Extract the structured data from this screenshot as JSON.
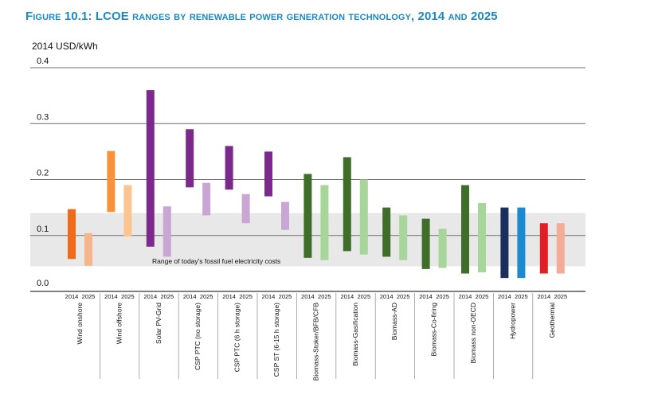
{
  "title": "Figure 10.1: LCOE ranges by renewable power generation technology, 2014 and 2025",
  "chart_data": {
    "type": "bar",
    "subtype": "floating-range",
    "ylabel": "2014 USD/kWh",
    "ylim": [
      0,
      0.4
    ],
    "yticks": [
      "0.0",
      "0.1",
      "0.2",
      "0.3",
      "0.4"
    ],
    "grid": true,
    "fossil_band": {
      "label": "Range of today's fossil fuel electricity costs",
      "low": 0.045,
      "high": 0.14,
      "color": "#e8e8e8"
    },
    "years": [
      "2014",
      "2025"
    ],
    "categories": [
      {
        "name": "Wind onshore",
        "ranges": [
          {
            "year": "2014",
            "low": 0.058,
            "high": 0.147,
            "color": "#f06a1a"
          },
          {
            "year": "2025",
            "low": 0.046,
            "high": 0.104,
            "color": "#f7b58a"
          }
        ]
      },
      {
        "name": "Wind offshore",
        "ranges": [
          {
            "year": "2014",
            "low": 0.142,
            "high": 0.251,
            "color": "#f7923a"
          },
          {
            "year": "2025",
            "low": 0.098,
            "high": 0.19,
            "color": "#fbc491"
          }
        ]
      },
      {
        "name": "Solar PV-Grid",
        "ranges": [
          {
            "year": "2014",
            "low": 0.08,
            "high": 0.36,
            "color": "#7b2a8b"
          },
          {
            "year": "2025",
            "low": 0.062,
            "high": 0.152,
            "color": "#c9a6d3"
          }
        ]
      },
      {
        "name": "CSP PTC (no storage)",
        "ranges": [
          {
            "year": "2014",
            "low": 0.186,
            "high": 0.29,
            "color": "#7b2a8b"
          },
          {
            "year": "2025",
            "low": 0.136,
            "high": 0.194,
            "color": "#c9a6d3"
          }
        ]
      },
      {
        "name": "CSP PTC (6 h storage)",
        "ranges": [
          {
            "year": "2014",
            "low": 0.182,
            "high": 0.26,
            "color": "#7b2a8b"
          },
          {
            "year": "2025",
            "low": 0.122,
            "high": 0.174,
            "color": "#c9a6d3"
          }
        ]
      },
      {
        "name": "CSP ST (6-15 h storage)",
        "ranges": [
          {
            "year": "2014",
            "low": 0.17,
            "high": 0.25,
            "color": "#7b2a8b"
          },
          {
            "year": "2025",
            "low": 0.11,
            "high": 0.16,
            "color": "#c9a6d3"
          }
        ]
      },
      {
        "name": "Biomass-Stoker/BFB/CFB",
        "ranges": [
          {
            "year": "2014",
            "low": 0.06,
            "high": 0.21,
            "color": "#3f6e2a"
          },
          {
            "year": "2025",
            "low": 0.056,
            "high": 0.19,
            "color": "#a8d59a"
          }
        ]
      },
      {
        "name": "Biomass-Gasification",
        "ranges": [
          {
            "year": "2014",
            "low": 0.072,
            "high": 0.24,
            "color": "#3f6e2a"
          },
          {
            "year": "2025",
            "low": 0.066,
            "high": 0.2,
            "color": "#a8d59a"
          }
        ]
      },
      {
        "name": "Biomass-AD",
        "ranges": [
          {
            "year": "2014",
            "low": 0.062,
            "high": 0.15,
            "color": "#3f6e2a"
          },
          {
            "year": "2025",
            "low": 0.056,
            "high": 0.136,
            "color": "#a8d59a"
          }
        ]
      },
      {
        "name": "Biomass-Co-firing",
        "ranges": [
          {
            "year": "2014",
            "low": 0.04,
            "high": 0.13,
            "color": "#3f6e2a"
          },
          {
            "year": "2025",
            "low": 0.042,
            "high": 0.112,
            "color": "#a8d59a"
          }
        ]
      },
      {
        "name": "Biomass non-OECD",
        "ranges": [
          {
            "year": "2014",
            "low": 0.032,
            "high": 0.19,
            "color": "#3f6e2a"
          },
          {
            "year": "2025",
            "low": 0.034,
            "high": 0.158,
            "color": "#a8d59a"
          }
        ]
      },
      {
        "name": "Hydropower",
        "ranges": [
          {
            "year": "2014",
            "low": 0.024,
            "high": 0.15,
            "color": "#1b2f5e"
          },
          {
            "year": "2025",
            "low": 0.024,
            "high": 0.15,
            "color": "#1a8ad2"
          }
        ]
      },
      {
        "name": "Geothermal",
        "ranges": [
          {
            "year": "2014",
            "low": 0.032,
            "high": 0.122,
            "color": "#e31e24"
          },
          {
            "year": "2025",
            "low": 0.032,
            "high": 0.122,
            "color": "#f6ab96"
          }
        ]
      }
    ]
  }
}
